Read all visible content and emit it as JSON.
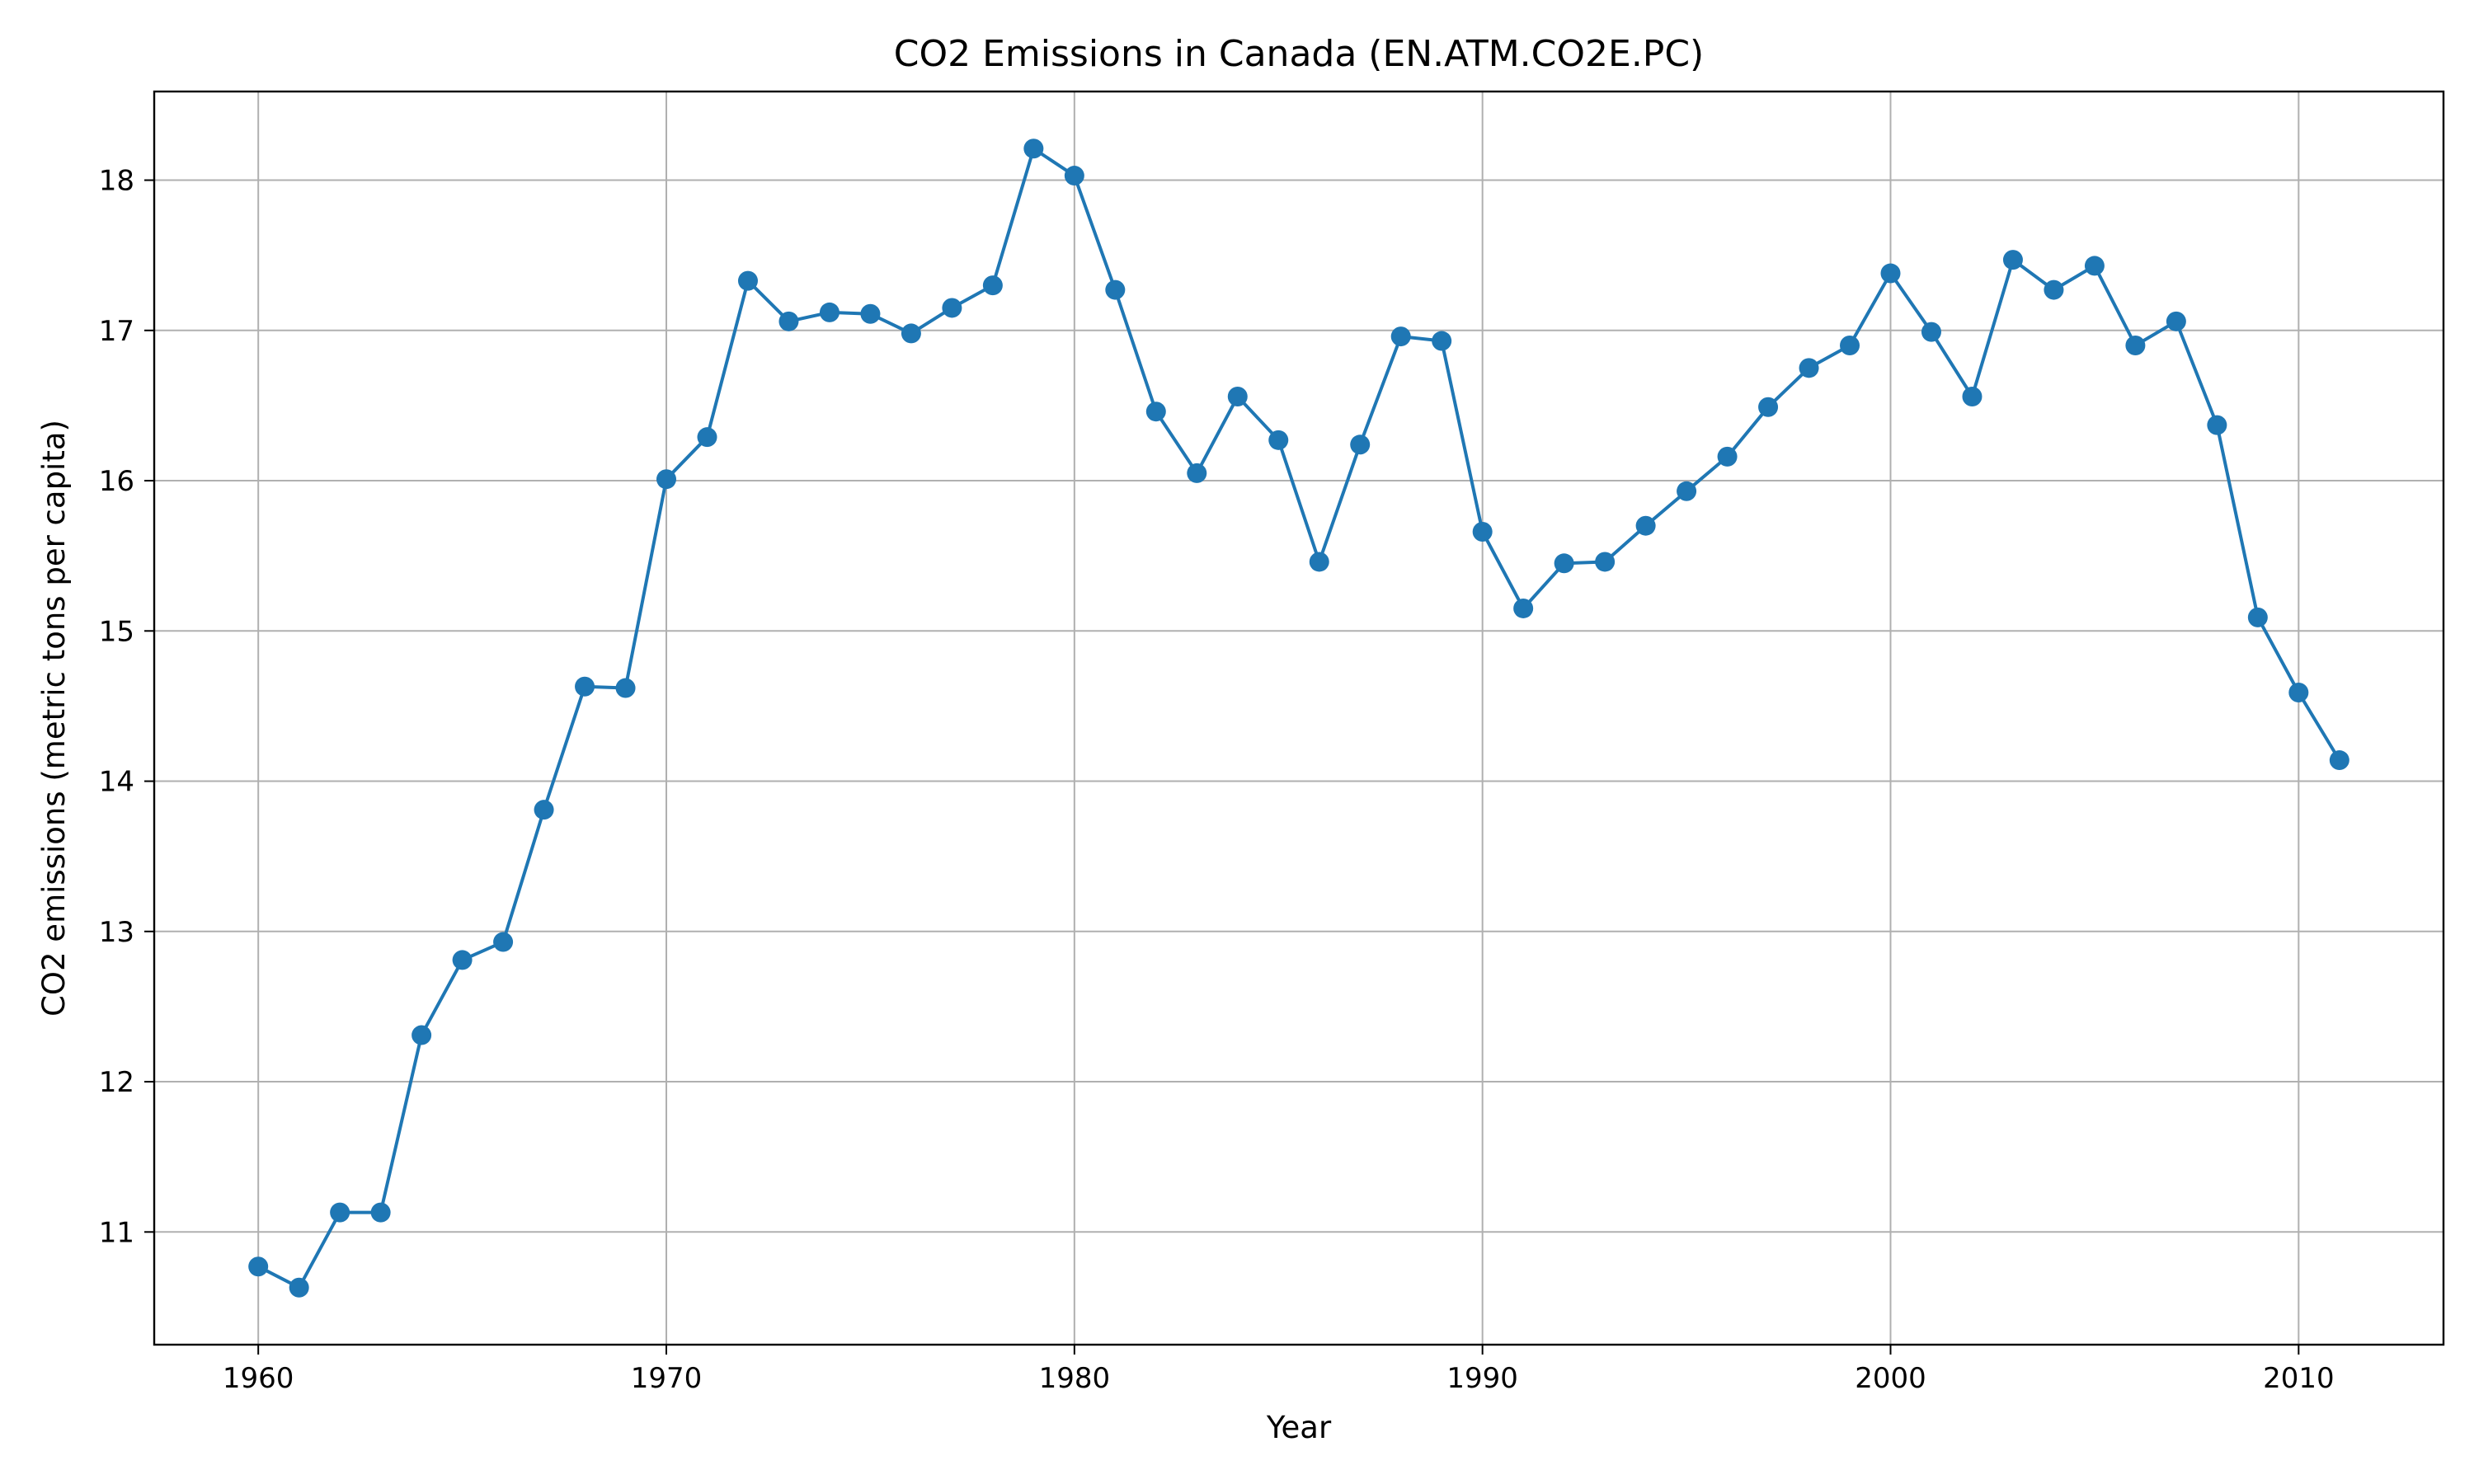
{
  "chart_data": {
    "type": "line",
    "title": "CO2 Emissions in Canada (EN.ATM.CO2E.PC)",
    "xlabel": "Year",
    "ylabel": "CO2 emissions (metric tons per capita)",
    "xlim": [
      1957.45,
      2013.55
    ],
    "ylim": [
      10.25,
      18.59
    ],
    "x_ticks": [
      1960,
      1970,
      1980,
      1990,
      2000,
      2010
    ],
    "y_ticks": [
      11,
      12,
      13,
      14,
      15,
      16,
      17,
      18
    ],
    "grid": true,
    "legend": null,
    "series": [
      {
        "name": "CO2 emissions (metric tons per capita)",
        "color": "#1f77b4",
        "marker": "circle",
        "x": [
          1960,
          1961,
          1962,
          1963,
          1964,
          1965,
          1966,
          1967,
          1968,
          1969,
          1970,
          1971,
          1972,
          1973,
          1974,
          1975,
          1976,
          1977,
          1978,
          1979,
          1980,
          1981,
          1982,
          1983,
          1984,
          1985,
          1986,
          1987,
          1988,
          1989,
          1990,
          1991,
          1992,
          1993,
          1994,
          1995,
          1996,
          1997,
          1998,
          1999,
          2000,
          2001,
          2002,
          2003,
          2004,
          2005,
          2006,
          2007,
          2008,
          2009,
          2010,
          2011
        ],
        "y": [
          10.77,
          10.63,
          11.13,
          11.13,
          12.31,
          12.81,
          12.93,
          13.81,
          14.63,
          14.62,
          16.01,
          16.29,
          17.33,
          17.06,
          17.12,
          17.11,
          16.98,
          17.15,
          17.3,
          18.21,
          18.03,
          17.27,
          16.46,
          16.05,
          16.56,
          16.27,
          15.46,
          16.24,
          16.96,
          16.93,
          15.66,
          15.15,
          15.45,
          15.46,
          15.7,
          15.93,
          16.16,
          16.49,
          16.75,
          16.9,
          17.38,
          16.99,
          16.56,
          17.47,
          17.27,
          17.43,
          16.9,
          17.06,
          16.37,
          15.09,
          14.59,
          14.14
        ]
      }
    ]
  }
}
